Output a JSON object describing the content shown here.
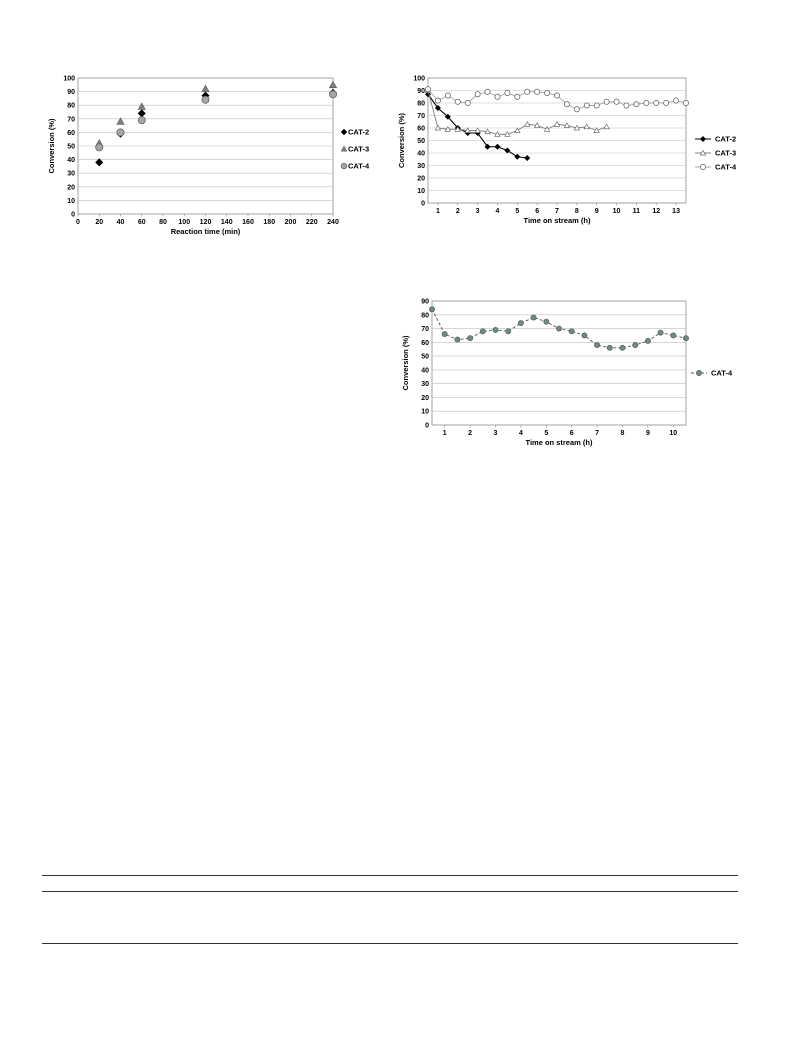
{
  "chart_data": [
    {
      "type": "scatter",
      "xlabel": "Reaction time (min)",
      "ylabel": "Conversion (%)",
      "xlim": [
        0,
        240
      ],
      "ylim": [
        0,
        100
      ],
      "xticks": [
        0,
        20,
        40,
        60,
        80,
        100,
        120,
        140,
        160,
        180,
        200,
        220,
        240
      ],
      "yticks": [
        0,
        10,
        20,
        30,
        40,
        50,
        60,
        70,
        80,
        90,
        100
      ],
      "grid": "horizontal",
      "legend_position": "right",
      "series": [
        {
          "name": "CAT-2",
          "marker": "diamond",
          "color": "#000000",
          "x": [
            20,
            40,
            60,
            120,
            240
          ],
          "y": [
            38,
            59,
            74,
            87,
            89
          ]
        },
        {
          "name": "CAT-3",
          "marker": "triangle",
          "color": "#808080",
          "x": [
            20,
            40,
            60,
            120,
            240
          ],
          "y": [
            52,
            68,
            79,
            92,
            95
          ]
        },
        {
          "name": "CAT-4",
          "marker": "circle",
          "color": "#a6a6a6",
          "x": [
            20,
            40,
            60,
            120,
            240
          ],
          "y": [
            49,
            60,
            69,
            84,
            88
          ]
        }
      ]
    },
    {
      "type": "line",
      "xlabel": "Time on stream (h)",
      "ylabel": "Conversion (%)",
      "xlim": [
        0.5,
        13.5
      ],
      "ylim": [
        0,
        100
      ],
      "xticks": [
        1,
        2,
        3,
        4,
        5,
        6,
        7,
        8,
        9,
        10,
        11,
        12,
        13
      ],
      "yticks": [
        0,
        10,
        20,
        30,
        40,
        50,
        60,
        70,
        80,
        90,
        100
      ],
      "grid": "horizontal",
      "legend_position": "right",
      "series": [
        {
          "name": "CAT-2",
          "marker": "diamond",
          "color": "#000000",
          "x": [
            0.5,
            1,
            1.5,
            2,
            2.5,
            3,
            3.5,
            4,
            4.5,
            5,
            5.5
          ],
          "y": [
            87,
            76,
            69,
            60,
            56,
            56,
            45,
            45,
            42,
            37,
            36
          ]
        },
        {
          "name": "CAT-3",
          "marker": "triangle",
          "color": "#808080",
          "x": [
            0.5,
            1,
            1.5,
            2,
            2.5,
            3,
            3.5,
            4,
            4.5,
            5,
            5.5,
            6,
            6.5,
            7,
            7.5,
            8,
            8.5,
            9,
            9.5
          ],
          "y": [
            90,
            60,
            59,
            59,
            58,
            58,
            57,
            55,
            55,
            58,
            63,
            62,
            59,
            63,
            62,
            60,
            61,
            58,
            61
          ]
        },
        {
          "name": "CAT-4",
          "marker": "circle",
          "color": "#a6a6a6",
          "x": [
            0.5,
            1,
            1.5,
            2,
            2.5,
            3,
            3.5,
            4,
            4.5,
            5,
            5.5,
            6,
            6.5,
            7,
            7.5,
            8,
            8.5,
            9,
            9.5,
            10,
            10.5,
            11,
            11.5,
            12,
            12.5,
            13,
            13.5
          ],
          "y": [
            91,
            82,
            86,
            81,
            80,
            87,
            89,
            85,
            88,
            85,
            89,
            89,
            88,
            86,
            79,
            75,
            78,
            78,
            81,
            81,
            78,
            79,
            80,
            80,
            80,
            82,
            80
          ]
        }
      ]
    },
    {
      "type": "line",
      "xlabel": "Time on stream (h)",
      "ylabel": "Conversion (%)",
      "xlim": [
        0.5,
        10.5
      ],
      "ylim": [
        0,
        90
      ],
      "xticks": [
        1,
        2,
        3,
        4,
        5,
        6,
        7,
        8,
        9,
        10
      ],
      "yticks": [
        0,
        10,
        20,
        30,
        40,
        50,
        60,
        70,
        80,
        90
      ],
      "grid": "horizontal",
      "legend_position": "right",
      "series": [
        {
          "name": "CAT-4",
          "marker": "circle",
          "line": "dashed",
          "color": "#6a8f7a",
          "x": [
            0.5,
            1,
            1.5,
            2,
            2.5,
            3,
            3.5,
            4,
            4.5,
            5,
            5.5,
            6,
            6.5,
            7,
            7.5,
            8,
            8.5,
            9,
            9.5,
            10,
            10.5
          ],
          "y": [
            84,
            66,
            62,
            63,
            68,
            69,
            68,
            74,
            78,
            75,
            70,
            68,
            65,
            58,
            56,
            56,
            58,
            61,
            67,
            65,
            63
          ]
        }
      ]
    }
  ]
}
